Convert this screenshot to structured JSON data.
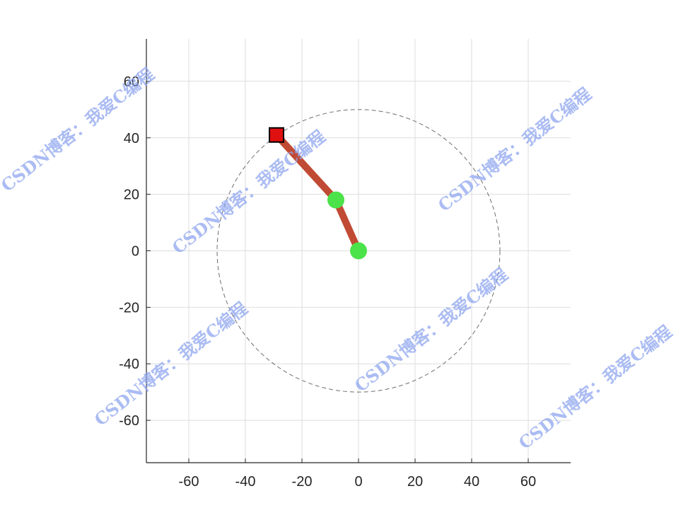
{
  "chart_data": {
    "type": "scatter",
    "xlim": [
      -75,
      75
    ],
    "ylim": [
      -75,
      75
    ],
    "xticks": [
      -60,
      -40,
      -20,
      0,
      20,
      40,
      60
    ],
    "yticks": [
      -60,
      -40,
      -20,
      0,
      20,
      40,
      60
    ],
    "grid": true,
    "workspace_circle": {
      "center": [
        0,
        0
      ],
      "radius": 50
    },
    "arm_links": [
      {
        "from": [
          0,
          0
        ],
        "to": [
          -8,
          18
        ]
      },
      {
        "from": [
          -8,
          18
        ],
        "to": [
          -29,
          41
        ]
      }
    ],
    "joints": [
      {
        "x": 0,
        "y": 0
      },
      {
        "x": -8,
        "y": 18
      }
    ],
    "target": {
      "x": -29,
      "y": 41
    }
  },
  "colors": {
    "link": "#c04a33",
    "joint": "#4ce24a",
    "target": "#e01010",
    "grid": "#dedede",
    "circle": "#6e6e6e",
    "axis": "#262626"
  },
  "watermark": "CSDN博客：我爱C编程"
}
